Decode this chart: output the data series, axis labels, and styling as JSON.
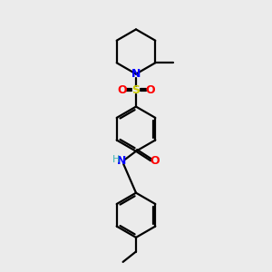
{
  "bg_color": "#ebebeb",
  "bond_color": "#000000",
  "N_color": "#0000ff",
  "O_color": "#ff0000",
  "S_color": "#cccc00",
  "H_color": "#3cb4b4",
  "line_width": 1.6,
  "figsize": [
    3.0,
    3.0
  ],
  "dpi": 100,
  "xlim": [
    0,
    10
  ],
  "ylim": [
    0,
    10
  ]
}
